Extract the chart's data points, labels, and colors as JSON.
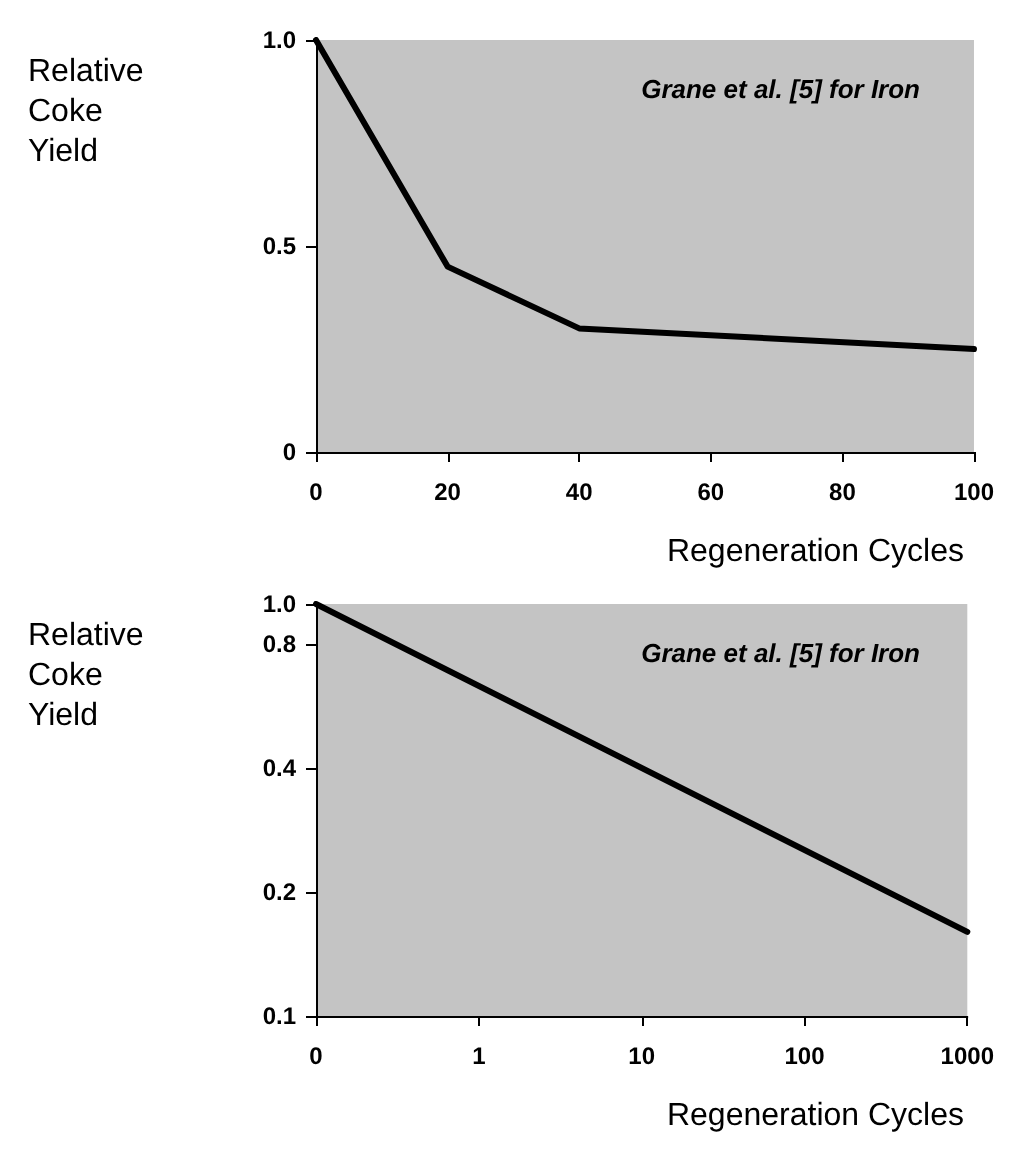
{
  "chart_data": [
    {
      "type": "line",
      "x": [
        0,
        20,
        40,
        100
      ],
      "values": [
        1.0,
        0.45,
        0.3,
        0.25
      ],
      "color": "#000000",
      "xlim": [
        0,
        100
      ],
      "xticks": [
        0,
        20,
        40,
        60,
        80,
        100
      ],
      "ylim": [
        0,
        1.0
      ],
      "yticks": [
        0,
        0.5,
        {
          "value": 1.0,
          "label": "1.0"
        }
      ],
      "xlabel": "Regeneration Cycles",
      "ylabel": "Relative Coke Yield",
      "annotations": [
        "Grane et al. [5] for Iron"
      ],
      "grid": false,
      "marker": "none"
    },
    {
      "type": "line",
      "x": [
        0.1,
        1000
      ],
      "values": [
        1.0,
        0.16
      ],
      "color": "#000000",
      "log": "xy",
      "xlim": [
        0.1,
        1000
      ],
      "xticks": [
        {
          "value": 0.1,
          "label": "0"
        },
        1,
        10,
        100,
        1000
      ],
      "ylim": [
        0.1,
        1.0
      ],
      "yticks": [
        0.1,
        0.2,
        0.4,
        0.8,
        {
          "value": 1.0,
          "label": "1.0"
        }
      ],
      "xlabel": "Regeneration Cycles",
      "ylabel": "Relative Coke Yield",
      "annotations": [
        "Grane et al. [5] for Iron"
      ],
      "grid": false,
      "marker": "none"
    }
  ]
}
